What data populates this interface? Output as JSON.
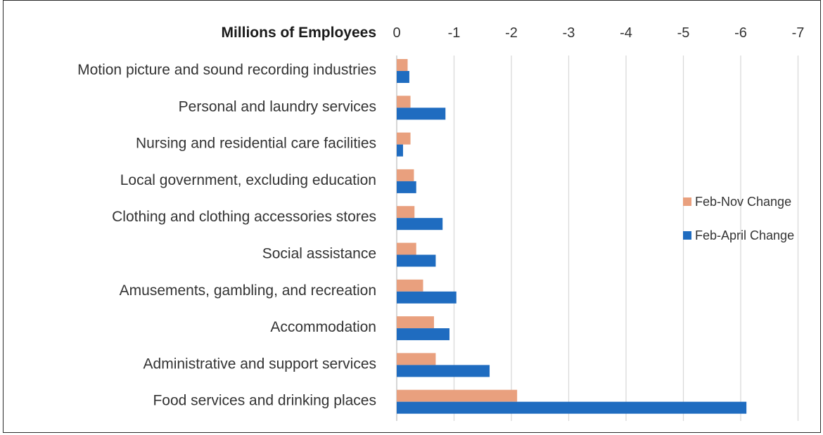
{
  "chart_data": {
    "type": "bar",
    "orientation": "horizontal",
    "xlabel": "Millions of Employees",
    "xlim": [
      0,
      -7
    ],
    "xticks": [
      "0",
      "-1",
      "-2",
      "-3",
      "-4",
      "-5",
      "-6",
      "-7"
    ],
    "xtick_values": [
      0,
      -1,
      -2,
      -3,
      -4,
      -5,
      -6,
      -7
    ],
    "grid": true,
    "legend_position": "right",
    "categories": [
      "Motion picture and sound recording industries",
      "Personal and laundry services",
      "Nursing and residential care facilities",
      "Local government, excluding education",
      "Clothing and clothing accessories stores",
      "Social assistance",
      "Amusements, gambling, and recreation",
      "Accommodation",
      "Administrative and support services",
      "Food services and drinking places"
    ],
    "series": [
      {
        "name": "Feb-Nov Change",
        "color": "#E9A07E",
        "values": [
          -0.19,
          -0.24,
          -0.24,
          -0.3,
          -0.31,
          -0.34,
          -0.46,
          -0.65,
          -0.68,
          -2.1
        ]
      },
      {
        "name": "Feb-April Change",
        "color": "#1F6CC0",
        "values": [
          -0.22,
          -0.85,
          -0.11,
          -0.34,
          -0.8,
          -0.68,
          -1.04,
          -0.92,
          -1.62,
          -6.1
        ]
      }
    ]
  }
}
